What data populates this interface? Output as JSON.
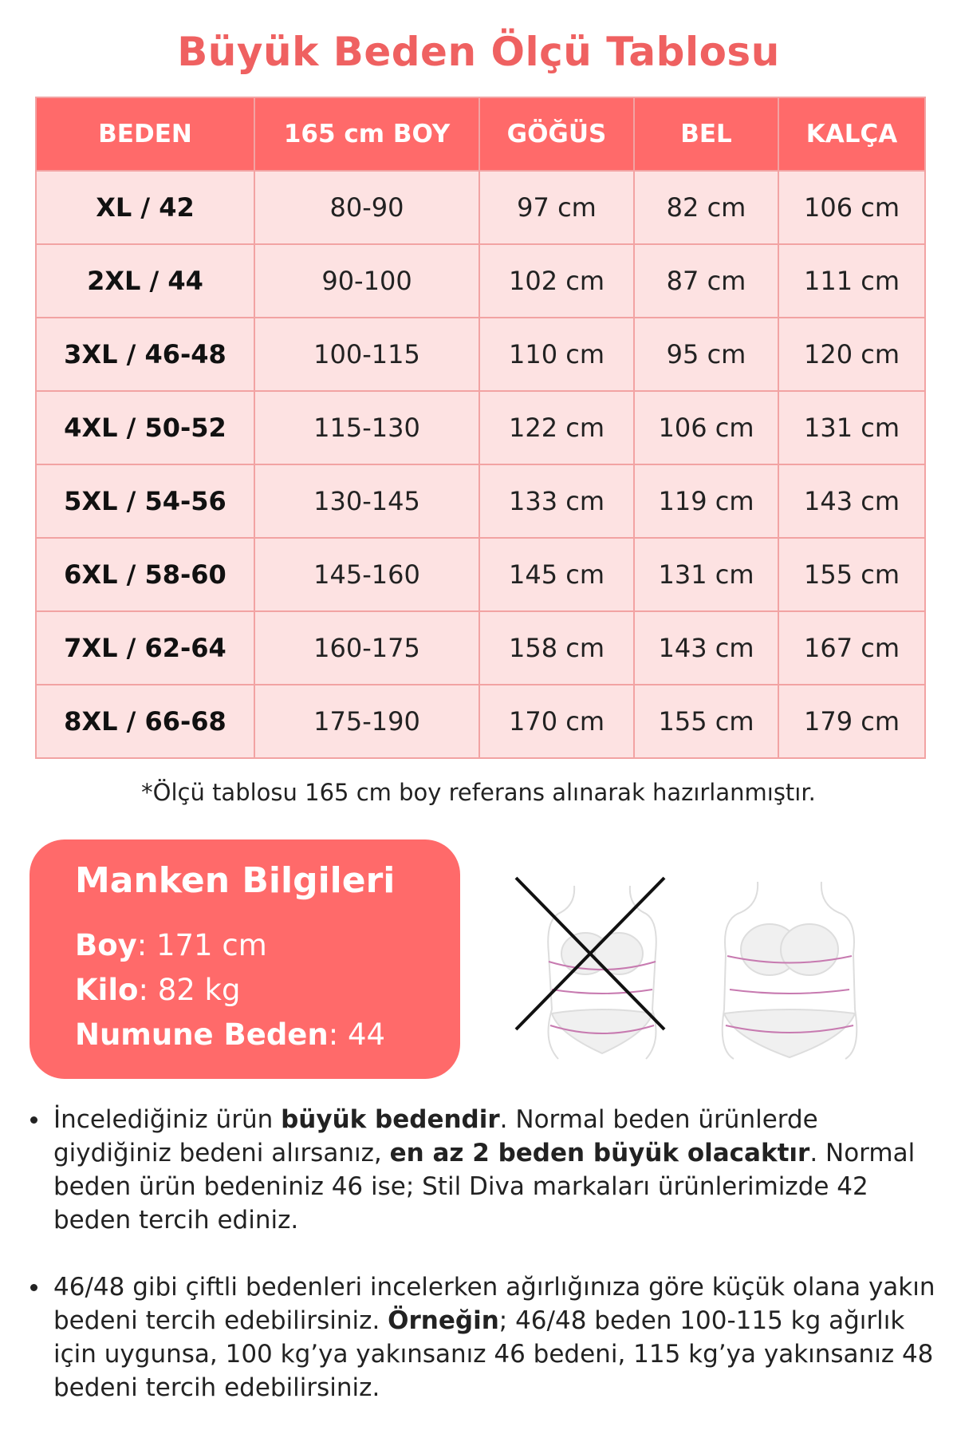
{
  "title": "Büyük Beden Ölçü Tablosu",
  "colors": {
    "accent": "#ff6a6a",
    "row_bg": "#fde2e2",
    "title": "#ef6161"
  },
  "table": {
    "headers": [
      "BEDEN",
      "165 cm BOY",
      "GÖĞÜS",
      "BEL",
      "KALÇA"
    ],
    "rows": [
      [
        "XL / 42",
        "80-90",
        "97 cm",
        "82 cm",
        "106 cm"
      ],
      [
        "2XL / 44",
        "90-100",
        "102 cm",
        "87 cm",
        "111 cm"
      ],
      [
        "3XL / 46-48",
        "100-115",
        "110 cm",
        "95 cm",
        "120 cm"
      ],
      [
        "4XL / 50-52",
        "115-130",
        "122 cm",
        "106 cm",
        "131 cm"
      ],
      [
        "5XL / 54-56",
        "130-145",
        "133 cm",
        "119 cm",
        "143 cm"
      ],
      [
        "6XL / 58-60",
        "145-160",
        "145 cm",
        "131 cm",
        "155 cm"
      ],
      [
        "7XL / 62-64",
        "160-175",
        "158 cm",
        "143 cm",
        "167 cm"
      ],
      [
        "8XL / 66-68",
        "175-190",
        "170 cm",
        "155 cm",
        "179 cm"
      ]
    ]
  },
  "note": "*Ölçü tablosu 165 cm boy referans alınarak hazırlanmıştır.",
  "model": {
    "title": "Manken Bilgileri",
    "height_label": "Boy",
    "height_value": ": 171 cm",
    "weight_label": "Kilo",
    "weight_value": ": 82 kg",
    "size_label": "Numune Beden",
    "size_value": ": 44"
  },
  "bullets": [
    {
      "t1": "İncelediğiniz ürün ",
      "b1": "büyük bedendir",
      "t2": ". Normal beden ürünlerde giydiğiniz bedeni alırsanız, ",
      "b2": "en az 2 beden büyük olacaktır",
      "t3": ". Normal beden ürün bedeniniz 46 ise; Stil Diva markaları ürünlerimizde 42 beden tercih ediniz."
    },
    {
      "t1": "46/48 gibi çiftli bedenleri incelerken ağırlığınıza göre küçük olana yakın bedeni tercih edebilirsiniz. ",
      "b1": "Örneğin",
      "t2": "; 46/48 beden 100-115 kg ağırlık için uygunsa, 100 kg’ya yakınsanız 46 bedeni, 115 kg’ya yakınsanız 48 bedeni tercih edebilirsiniz."
    }
  ]
}
